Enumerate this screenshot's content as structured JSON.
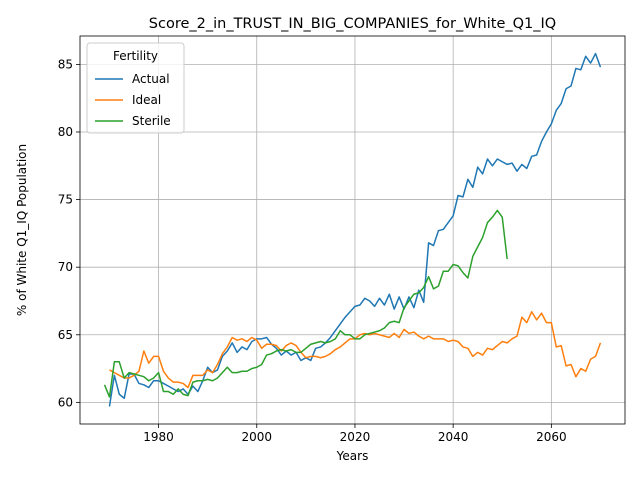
{
  "chart_data": {
    "type": "line",
    "title": "Score_2_in_TRUST_IN_BIG_COMPANIES_for_White_Q1_IQ",
    "xlabel": "Years",
    "ylabel": "% of White Q1_IQ Population",
    "xlim": [
      1964,
      2075
    ],
    "ylim": [
      58.4,
      87.1
    ],
    "xticks": [
      1980,
      2000,
      2020,
      2040,
      2060
    ],
    "yticks": [
      60,
      65,
      70,
      75,
      80,
      85
    ],
    "grid": true,
    "legend": {
      "title": "Fertility",
      "placement": "top-left"
    },
    "series": [
      {
        "name": "Actual",
        "color": "#1f77b4",
        "x": [
          1970,
          1971,
          1972,
          1973,
          1974,
          1975,
          1976,
          1977,
          1978,
          1979,
          1980,
          1981,
          1982,
          1983,
          1984,
          1985,
          1986,
          1987,
          1988,
          1989,
          1990,
          1991,
          1992,
          1993,
          1994,
          1995,
          1996,
          1997,
          1998,
          1999,
          2000,
          2001,
          2002,
          2003,
          2004,
          2005,
          2006,
          2007,
          2008,
          2009,
          2010,
          2011,
          2012,
          2013,
          2014,
          2015,
          2016,
          2017,
          2018,
          2019,
          2020,
          2021,
          2022,
          2023,
          2024,
          2025,
          2026,
          2027,
          2028,
          2029,
          2030,
          2031,
          2032,
          2033,
          2034,
          2035,
          2036,
          2037,
          2038,
          2039,
          2040,
          2041,
          2042,
          2043,
          2044,
          2045,
          2046,
          2047,
          2048,
          2049,
          2050,
          2051,
          2052,
          2053,
          2054,
          2055,
          2056,
          2057,
          2058,
          2059,
          2060,
          2061,
          2062,
          2063,
          2064,
          2065,
          2066,
          2067,
          2068,
          2069,
          2070
        ],
        "values": [
          59.7,
          62.0,
          60.6,
          60.3,
          62.1,
          62.1,
          61.4,
          61.3,
          61.1,
          61.6,
          61.6,
          61.4,
          61.2,
          61.0,
          60.8,
          61.0,
          60.6,
          61.2,
          60.8,
          61.6,
          62.6,
          62.2,
          62.4,
          63.4,
          63.8,
          64.4,
          63.7,
          64.1,
          63.9,
          64.5,
          64.7,
          64.7,
          64.8,
          64.3,
          64.0,
          63.5,
          63.8,
          63.5,
          63.7,
          63.1,
          63.3,
          63.1,
          64.0,
          64.1,
          64.4,
          64.8,
          65.3,
          65.8,
          66.3,
          66.7,
          67.1,
          67.2,
          67.7,
          67.5,
          67.1,
          67.7,
          67.2,
          68.0,
          66.9,
          67.8,
          66.9,
          67.8,
          67.0,
          68.3,
          67.4,
          71.8,
          71.6,
          72.7,
          72.8,
          73.3,
          73.8,
          75.3,
          75.2,
          76.5,
          75.9,
          77.4,
          76.9,
          78.0,
          77.5,
          78.0,
          77.8,
          77.6,
          77.7,
          77.1,
          77.6,
          77.3,
          78.2,
          78.3,
          79.3,
          80.0,
          80.6,
          81.6,
          82.1,
          83.2,
          83.4,
          84.7,
          84.6,
          85.6,
          85.1,
          85.8,
          84.8
        ]
      },
      {
        "name": "Ideal",
        "color": "#ff7f0e",
        "x": [
          1970,
          1971,
          1972,
          1973,
          1974,
          1975,
          1976,
          1977,
          1978,
          1979,
          1980,
          1981,
          1982,
          1983,
          1984,
          1985,
          1986,
          1987,
          1988,
          1989,
          1990,
          1991,
          1992,
          1993,
          1994,
          1995,
          1996,
          1997,
          1998,
          1999,
          2000,
          2001,
          2002,
          2003,
          2004,
          2005,
          2006,
          2007,
          2008,
          2009,
          2010,
          2011,
          2012,
          2013,
          2014,
          2015,
          2016,
          2017,
          2018,
          2019,
          2020,
          2021,
          2022,
          2023,
          2024,
          2025,
          2026,
          2027,
          2028,
          2029,
          2030,
          2031,
          2032,
          2033,
          2034,
          2035,
          2036,
          2037,
          2038,
          2039,
          2040,
          2041,
          2042,
          2043,
          2044,
          2045,
          2046,
          2047,
          2048,
          2049,
          2050,
          2051,
          2052,
          2053,
          2054,
          2055,
          2056,
          2057,
          2058,
          2059,
          2060,
          2061,
          2062,
          2063,
          2064,
          2065,
          2066,
          2067,
          2068,
          2069,
          2070
        ],
        "values": [
          62.4,
          62.2,
          62.0,
          61.8,
          61.8,
          62.0,
          62.3,
          63.8,
          62.9,
          63.4,
          63.4,
          62.3,
          61.8,
          61.5,
          61.5,
          61.4,
          61.1,
          62.0,
          62.0,
          62.0,
          62.4,
          62.2,
          62.8,
          63.6,
          64.1,
          64.8,
          64.6,
          64.7,
          64.5,
          64.8,
          64.6,
          64.0,
          64.3,
          64.3,
          64.2,
          63.8,
          64.2,
          64.4,
          64.2,
          63.7,
          63.3,
          63.4,
          63.4,
          63.3,
          63.4,
          63.6,
          63.9,
          64.1,
          64.4,
          64.7,
          64.7,
          65.0,
          65.1,
          65.0,
          65.1,
          65.0,
          64.9,
          64.8,
          65.1,
          64.8,
          65.4,
          65.1,
          65.2,
          64.9,
          64.7,
          64.9,
          64.7,
          64.7,
          64.7,
          64.5,
          64.6,
          64.5,
          64.1,
          64.0,
          63.4,
          63.7,
          63.5,
          64.0,
          63.9,
          64.2,
          64.5,
          64.4,
          64.7,
          64.9,
          66.3,
          65.9,
          66.7,
          66.1,
          66.6,
          65.9,
          65.9,
          64.1,
          64.2,
          62.7,
          62.8,
          61.9,
          62.5,
          62.3,
          63.2,
          63.4,
          64.4
        ]
      },
      {
        "name": "Sterile",
        "color": "#2ca02c",
        "x": [
          1969,
          1970,
          1971,
          1972,
          1973,
          1974,
          1975,
          1976,
          1977,
          1978,
          1979,
          1980,
          1981,
          1982,
          1983,
          1984,
          1985,
          1986,
          1987,
          1988,
          1989,
          1990,
          1991,
          1992,
          1993,
          1994,
          1995,
          1996,
          1997,
          1998,
          1999,
          2000,
          2001,
          2002,
          2003,
          2004,
          2005,
          2006,
          2007,
          2008,
          2009,
          2010,
          2011,
          2012,
          2013,
          2014,
          2015,
          2016,
          2017,
          2018,
          2019,
          2020,
          2021,
          2022,
          2023,
          2024,
          2025,
          2026,
          2027,
          2028,
          2029,
          2030,
          2031,
          2032,
          2033,
          2034,
          2035,
          2036,
          2037,
          2038,
          2039,
          2040,
          2041,
          2042,
          2043,
          2044,
          2045,
          2046,
          2047,
          2048,
          2049,
          2050,
          2051
        ],
        "values": [
          61.3,
          60.4,
          63.0,
          63.0,
          61.8,
          62.2,
          62.1,
          62.0,
          61.9,
          61.6,
          61.8,
          62.2,
          60.8,
          60.8,
          60.6,
          61.0,
          60.6,
          60.5,
          61.5,
          61.6,
          61.6,
          61.7,
          61.6,
          61.8,
          62.2,
          62.6,
          62.2,
          62.2,
          62.3,
          62.3,
          62.5,
          62.6,
          62.8,
          63.5,
          63.6,
          63.8,
          63.9,
          63.8,
          63.9,
          63.7,
          63.7,
          64.0,
          64.3,
          64.4,
          64.5,
          64.4,
          64.5,
          64.7,
          65.3,
          65.0,
          65.0,
          64.7,
          64.7,
          65.0,
          65.1,
          65.2,
          65.3,
          65.5,
          65.9,
          66.0,
          65.9,
          67.0,
          67.5,
          68.0,
          68.1,
          68.5,
          69.3,
          68.4,
          68.6,
          69.7,
          69.7,
          70.2,
          70.1,
          69.6,
          69.2,
          70.8,
          71.5,
          72.2,
          73.3,
          73.7,
          74.2,
          73.7,
          70.6
        ]
      }
    ]
  }
}
